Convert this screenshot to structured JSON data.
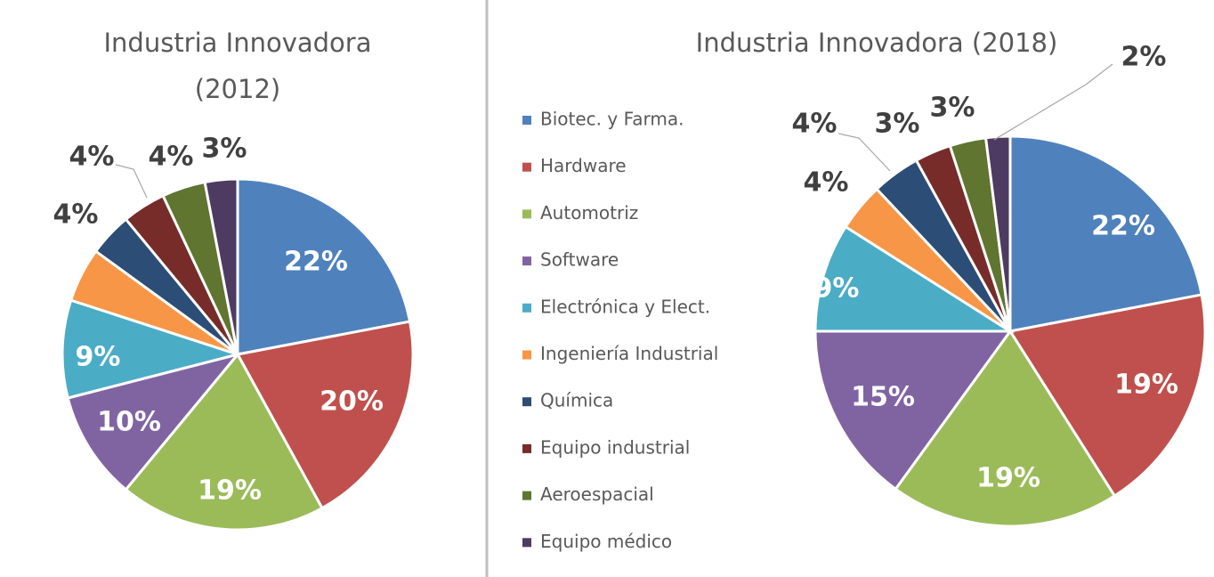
{
  "chart_data": [
    {
      "type": "pie",
      "title": "Industria Innovadora (2012)",
      "title_lines": [
        "Industria Innovadora",
        "(2012)"
      ],
      "categories": [
        "Biotec. y Farma.",
        "Hardware",
        "Automotriz",
        "Software",
        "Electrónica y Elect.",
        "Ingeniería Industrial",
        "Química",
        "Equipo industrial",
        "Aeroespacial",
        "Equipo médico"
      ],
      "values": [
        22,
        20,
        19,
        10,
        9,
        5,
        4,
        4,
        4,
        3
      ],
      "data_labels": [
        "22%",
        "20%",
        "19%",
        "10%",
        "9%",
        "",
        "4%",
        "4%",
        "4%",
        "3%"
      ]
    },
    {
      "type": "pie",
      "title": "Industria Innovadora (2018)",
      "categories": [
        "Biotec. y Farma.",
        "Hardware",
        "Automotriz",
        "Software",
        "Electrónica y Elect.",
        "Ingeniería Industrial",
        "Química",
        "Equipo industrial",
        "Aeroespacial",
        "Equipo médico"
      ],
      "values": [
        22,
        19,
        19,
        15,
        9,
        4,
        4,
        3,
        3,
        2
      ],
      "data_labels": [
        "22%",
        "19%",
        "19%",
        "15%",
        "9%",
        "4%",
        "4%",
        "3%",
        "3%",
        "2%"
      ],
      "legend": "left"
    }
  ],
  "colors": [
    "#4F81BD",
    "#C0504D",
    "#9BBB59",
    "#8064A2",
    "#4BACC6",
    "#F79646",
    "#2C4D75",
    "#772C2A",
    "#5F7530",
    "#4D3B62"
  ]
}
